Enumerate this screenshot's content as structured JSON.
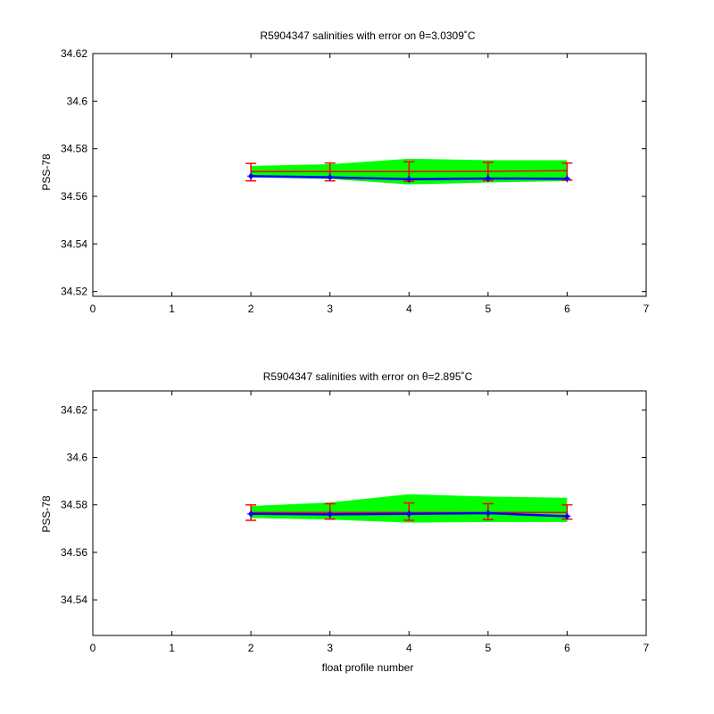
{
  "chart_data": [
    {
      "type": "line",
      "title": "R5904347 salinities with error on θ=3.0309˚C",
      "xlabel": "",
      "ylabel": "PSS-78",
      "xlim": [
        0,
        7
      ],
      "ylim": [
        34.518,
        34.62
      ],
      "xticks": [
        "0",
        "1",
        "2",
        "3",
        "4",
        "5",
        "6",
        "7"
      ],
      "yticks": [
        "34.52",
        "34.54",
        "34.56",
        "34.58",
        "34.6",
        "34.62"
      ],
      "grid": false,
      "x": [
        2,
        3,
        4,
        5,
        6
      ],
      "series": [
        {
          "role": "mapped_mean",
          "color": "#ff0000",
          "values": [
            34.5704,
            34.5704,
            34.5704,
            34.5705,
            34.5708
          ]
        },
        {
          "role": "mapped_error_upper",
          "color": "#00ff00",
          "values": [
            34.5728,
            34.5735,
            34.5758,
            34.5752,
            34.5752
          ]
        },
        {
          "role": "mapped_error_lower",
          "color": "#00ff00",
          "values": [
            34.568,
            34.5673,
            34.565,
            34.5658,
            34.5664
          ]
        },
        {
          "role": "float_salinity",
          "color": "#0000ff",
          "values": [
            34.5685,
            34.568,
            34.5672,
            34.5675,
            34.5674
          ]
        },
        {
          "role": "error_bar_upper",
          "color": "#ff0000",
          "values": [
            34.5738,
            34.574,
            34.5745,
            34.5743,
            34.574
          ]
        },
        {
          "role": "error_bar_lower",
          "color": "#ff0000",
          "values": [
            34.5665,
            34.5665,
            34.5663,
            34.5666,
            34.5668
          ]
        }
      ]
    },
    {
      "type": "line",
      "title": "R5904347 salinities with error on θ=2.895˚C",
      "xlabel": "float profile number",
      "ylabel": "PSS-78",
      "xlim": [
        0,
        7
      ],
      "ylim": [
        34.525,
        34.628
      ],
      "xticks": [
        "0",
        "1",
        "2",
        "3",
        "4",
        "5",
        "6",
        "7"
      ],
      "yticks": [
        "34.54",
        "34.56",
        "34.58",
        "34.6",
        "34.62"
      ],
      "grid": false,
      "x": [
        2,
        3,
        4,
        5,
        6
      ],
      "series": [
        {
          "role": "mapped_mean",
          "color": "#ff0000",
          "values": [
            34.5768,
            34.5768,
            34.5768,
            34.5768,
            34.5768
          ]
        },
        {
          "role": "mapped_error_upper",
          "color": "#00ff00",
          "values": [
            34.5795,
            34.581,
            34.5845,
            34.5835,
            34.583
          ]
        },
        {
          "role": "mapped_error_lower",
          "color": "#00ff00",
          "values": [
            34.5745,
            34.5738,
            34.5725,
            34.5728,
            34.5728
          ]
        },
        {
          "role": "float_salinity",
          "color": "#0000ff",
          "values": [
            34.5762,
            34.576,
            34.5762,
            34.5765,
            34.5752
          ]
        },
        {
          "role": "error_bar_upper",
          "color": "#ff0000",
          "values": [
            34.58,
            34.5805,
            34.5808,
            34.5805,
            34.58
          ]
        },
        {
          "role": "error_bar_lower",
          "color": "#ff0000",
          "values": [
            34.5735,
            34.574,
            34.5735,
            34.5738,
            34.574
          ]
        }
      ]
    }
  ]
}
